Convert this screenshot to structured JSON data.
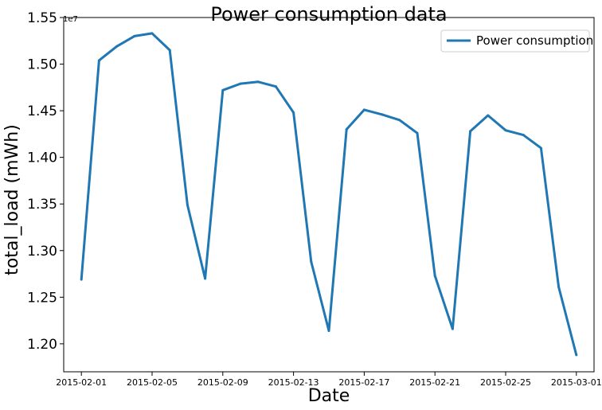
{
  "chart_data": {
    "type": "line",
    "title": "Power consumption data",
    "xlabel": "Date",
    "ylabel": "total_load (mWh)",
    "y_offset_label": "1e7",
    "ylim": [
      1.17,
      1.55
    ],
    "xlim": [
      "2015-01-31",
      "2015-03-02"
    ],
    "yticks": [
      1.2,
      1.25,
      1.3,
      1.35,
      1.4,
      1.45,
      1.5,
      1.55
    ],
    "ytick_labels": [
      "1.20",
      "1.25",
      "1.30",
      "1.35",
      "1.40",
      "1.45",
      "1.50",
      "1.55"
    ],
    "xticks": [
      "2015-02-01",
      "2015-02-05",
      "2015-02-09",
      "2015-02-13",
      "2015-02-17",
      "2015-02-21",
      "2015-02-25",
      "2015-03-01"
    ],
    "grid": false,
    "legend_position": "top-right",
    "series": [
      {
        "name": "Power consumption",
        "color": "#1f77b4",
        "x": [
          "2015-02-01",
          "2015-02-02",
          "2015-02-03",
          "2015-02-04",
          "2015-02-05",
          "2015-02-06",
          "2015-02-07",
          "2015-02-08",
          "2015-02-09",
          "2015-02-10",
          "2015-02-11",
          "2015-02-12",
          "2015-02-13",
          "2015-02-14",
          "2015-02-15",
          "2015-02-16",
          "2015-02-17",
          "2015-02-18",
          "2015-02-19",
          "2015-02-20",
          "2015-02-21",
          "2015-02-22",
          "2015-02-23",
          "2015-02-24",
          "2015-02-25",
          "2015-02-26",
          "2015-02-27",
          "2015-02-28",
          "2015-03-01"
        ],
        "values": [
          1.269,
          1.504,
          1.519,
          1.53,
          1.533,
          1.515,
          1.349,
          1.27,
          1.472,
          1.479,
          1.481,
          1.476,
          1.448,
          1.288,
          1.214,
          1.43,
          1.451,
          1.446,
          1.44,
          1.426,
          1.273,
          1.216,
          1.428,
          1.445,
          1.429,
          1.424,
          1.41,
          1.261,
          1.188
        ]
      }
    ]
  }
}
